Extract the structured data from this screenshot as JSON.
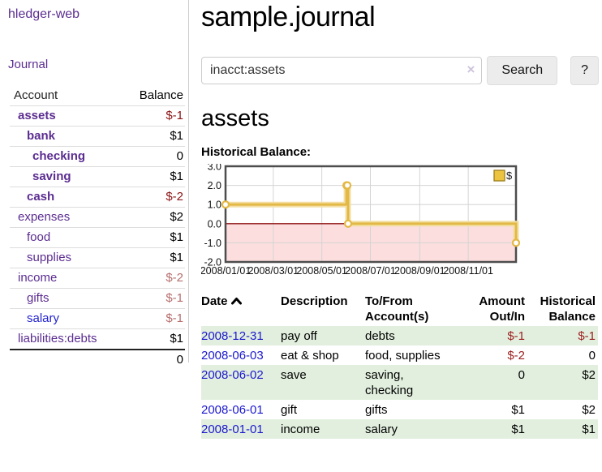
{
  "app": {
    "brand": "hledger-web",
    "nav_journal": "Journal"
  },
  "sidebar": {
    "headers": {
      "account": "Account",
      "balance": "Balance"
    },
    "accounts": [
      {
        "name": "assets",
        "level": 0,
        "bold": true,
        "balance": "$-1",
        "tone": "neg-strong",
        "blue": false
      },
      {
        "name": "bank",
        "level": 1,
        "bold": true,
        "balance": "$1",
        "tone": "pos",
        "blue": false
      },
      {
        "name": "checking",
        "level": 2,
        "bold": true,
        "balance": "0",
        "tone": "pos",
        "blue": false
      },
      {
        "name": "saving",
        "level": 2,
        "bold": true,
        "balance": "$1",
        "tone": "pos",
        "blue": false
      },
      {
        "name": "cash",
        "level": 1,
        "bold": true,
        "balance": "$-2",
        "tone": "neg-strong",
        "blue": false
      },
      {
        "name": "expenses",
        "level": 0,
        "bold": false,
        "balance": "$2",
        "tone": "pos",
        "blue": false
      },
      {
        "name": "food",
        "level": 1,
        "bold": false,
        "balance": "$1",
        "tone": "pos",
        "blue": false
      },
      {
        "name": "supplies",
        "level": 1,
        "bold": false,
        "balance": "$1",
        "tone": "pos",
        "blue": false
      },
      {
        "name": "income",
        "level": 0,
        "bold": false,
        "balance": "$-2",
        "tone": "neg-soft",
        "blue": false
      },
      {
        "name": "gifts",
        "level": 1,
        "bold": false,
        "balance": "$-1",
        "tone": "neg-soft",
        "blue": false
      },
      {
        "name": "salary",
        "level": 1,
        "bold": false,
        "balance": "$-1",
        "tone": "neg-soft",
        "blue": true
      },
      {
        "name": "liabilities:debts",
        "level": 0,
        "bold": false,
        "balance": "$1",
        "tone": "pos",
        "blue": false
      }
    ],
    "total": "0"
  },
  "header": {
    "title": "sample.journal"
  },
  "search": {
    "value": "inacct:assets",
    "clear_icon": "×",
    "button": "Search",
    "help_button": "?"
  },
  "account_page": {
    "heading": "assets",
    "chart_label": "Historical Balance:"
  },
  "chart_data": {
    "type": "line",
    "step": true,
    "title": "Historical Balance",
    "series": [
      {
        "name": "$",
        "points": [
          [
            "2008-01-01",
            1
          ],
          [
            "2008-06-01",
            2
          ],
          [
            "2008-06-02",
            2
          ],
          [
            "2008-06-03",
            0
          ],
          [
            "2008-12-31",
            -1
          ]
        ]
      }
    ],
    "x_ticks": [
      "2008/01/01",
      "2008/03/01",
      "2008/05/01",
      "2008/07/01",
      "2008/09/01",
      "2008/11/01"
    ],
    "y_ticks": [
      3.0,
      2.0,
      1.0,
      0.0,
      -1.0,
      -2.0
    ],
    "ylim": [
      -2,
      3
    ],
    "x_start": "2008-01-01",
    "x_end": "2008-12-31",
    "grid": true,
    "legend": {
      "label": "$",
      "position": "top-right"
    },
    "colors": {
      "line": "#e3b844",
      "line_halo": "#f3dfa3",
      "marker_fill": "#ffffff",
      "negative_fill": "#fcdede",
      "zero_line": "#8e1414",
      "legend_fill": "#ecc440",
      "legend_border": "#9c7d1d",
      "border": "#4d4d4d",
      "grid": "#d4d4d4"
    }
  },
  "transactions": {
    "headers": {
      "date": "Date",
      "description": "Description",
      "accounts_line1": "To/From",
      "accounts_line2": "Account(s)",
      "amount_line1": "Amount",
      "amount_line2": "Out/In",
      "balance_line1": "Historical",
      "balance_line2": "Balance"
    },
    "rows": [
      {
        "date": "2008-12-31",
        "description": "pay off",
        "accounts": "debts",
        "amount": "$-1",
        "amount_neg": true,
        "balance": "$-1",
        "balance_neg": true
      },
      {
        "date": "2008-06-03",
        "description": "eat & shop",
        "accounts": "food, supplies",
        "amount": "$-2",
        "amount_neg": true,
        "balance": "0",
        "balance_neg": false
      },
      {
        "date": "2008-06-02",
        "description": "save",
        "accounts": "saving, checking",
        "amount": "0",
        "amount_neg": false,
        "balance": "$2",
        "balance_neg": false
      },
      {
        "date": "2008-06-01",
        "description": "gift",
        "accounts": "gifts",
        "amount": "$1",
        "amount_neg": false,
        "balance": "$2",
        "balance_neg": false
      },
      {
        "date": "2008-01-01",
        "description": "income",
        "accounts": "salary",
        "amount": "$1",
        "amount_neg": false,
        "balance": "$1",
        "balance_neg": false
      }
    ]
  },
  "colors": {
    "link_purple": "#5b2d91",
    "link_blue": "#1b18cf",
    "neg_strong": "#8b1414",
    "neg_soft": "#b66e6e",
    "neg_table": "#9c1f1f",
    "row_stripe_green": "#e2efde",
    "sidebar_divider": "#cccccc"
  }
}
